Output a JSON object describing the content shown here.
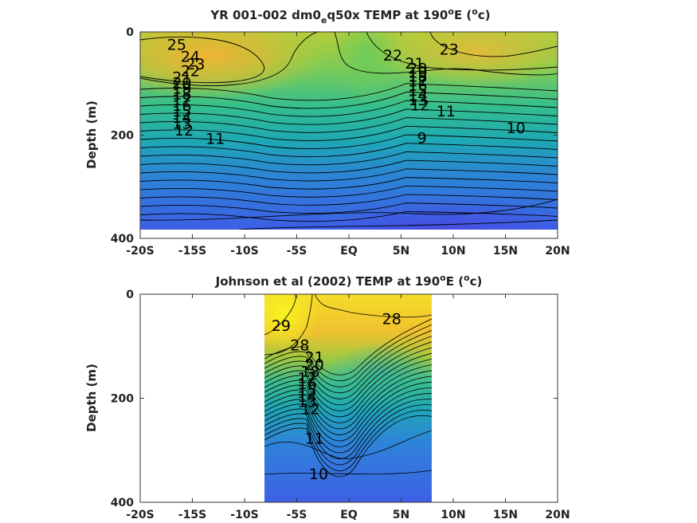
{
  "chart_data": [
    {
      "type": "contour",
      "title_main": "YR 001-002 dm0",
      "title_sub": "e",
      "title_rest": "q50x TEMP at 190",
      "title_sup": "o",
      "title_end": "E (",
      "title_sup2": "o",
      "title_close": "c)",
      "ylabel": "Depth (m)",
      "xlim": [
        -20,
        20
      ],
      "ylim": [
        400,
        0
      ],
      "data_extent_x": [
        -20,
        20
      ],
      "data_extent_y": [
        0,
        385
      ],
      "x_ticks": [
        {
          "v": -20,
          "label": "-20S"
        },
        {
          "v": -15,
          "label": "-15S"
        },
        {
          "v": -10,
          "label": "-10S"
        },
        {
          "v": -5,
          "label": "-5S"
        },
        {
          "v": 0,
          "label": "EQ"
        },
        {
          "v": 5,
          "label": "5N"
        },
        {
          "v": 10,
          "label": "10N"
        },
        {
          "v": 15,
          "label": "15N"
        },
        {
          "v": 20,
          "label": "20N"
        }
      ],
      "y_ticks": [
        {
          "v": 0,
          "label": "0"
        },
        {
          "v": 200,
          "label": "200"
        },
        {
          "v": 400,
          "label": "400"
        }
      ],
      "contour_labels": [
        {
          "x": -16.5,
          "y": 24,
          "text": "25"
        },
        {
          "x": -15.2,
          "y": 47,
          "text": "24"
        },
        {
          "x": -14.7,
          "y": 62,
          "text": "23"
        },
        {
          "x": -15.2,
          "y": 75,
          "text": "22"
        },
        {
          "x": -16.0,
          "y": 87,
          "text": "21"
        },
        {
          "x": -16.0,
          "y": 98,
          "text": "20"
        },
        {
          "x": -16.0,
          "y": 109,
          "text": "19"
        },
        {
          "x": -16.0,
          "y": 120,
          "text": "18"
        },
        {
          "x": -16.0,
          "y": 131,
          "text": "17"
        },
        {
          "x": -16.0,
          "y": 142,
          "text": "16"
        },
        {
          "x": -16.0,
          "y": 153,
          "text": "15"
        },
        {
          "x": -16.0,
          "y": 165,
          "text": "14"
        },
        {
          "x": -16.0,
          "y": 177,
          "text": "13"
        },
        {
          "x": -15.8,
          "y": 190,
          "text": "12"
        },
        {
          "x": -12.8,
          "y": 206,
          "text": "11"
        },
        {
          "x": 4.2,
          "y": 45,
          "text": "22"
        },
        {
          "x": 6.3,
          "y": 60,
          "text": "21"
        },
        {
          "x": 6.6,
          "y": 70,
          "text": "20"
        },
        {
          "x": 6.6,
          "y": 78,
          "text": "19"
        },
        {
          "x": 6.6,
          "y": 86,
          "text": "18"
        },
        {
          "x": 6.6,
          "y": 94,
          "text": "17"
        },
        {
          "x": 6.6,
          "y": 103,
          "text": "16"
        },
        {
          "x": 6.6,
          "y": 113,
          "text": "15"
        },
        {
          "x": 6.6,
          "y": 122,
          "text": "14"
        },
        {
          "x": 6.6,
          "y": 131,
          "text": "13"
        },
        {
          "x": 6.8,
          "y": 141,
          "text": "12"
        },
        {
          "x": 9.3,
          "y": 153,
          "text": "11"
        },
        {
          "x": 16.0,
          "y": 185,
          "text": "10"
        },
        {
          "x": 7.0,
          "y": 205,
          "text": "9"
        },
        {
          "x": 9.6,
          "y": 33,
          "text": "23"
        }
      ]
    },
    {
      "type": "contour",
      "title_main": "Johnson et al (2002) TEMP at 190",
      "title_sup": "o",
      "title_end": "E (",
      "title_sup2": "o",
      "title_close": "c)",
      "ylabel": "Depth (m)",
      "xlim": [
        -20,
        20
      ],
      "ylim": [
        400,
        0
      ],
      "data_extent_x": [
        -8,
        8
      ],
      "data_extent_y": [
        0,
        400
      ],
      "x_ticks": [
        {
          "v": -20,
          "label": "-20S"
        },
        {
          "v": -15,
          "label": "-15S"
        },
        {
          "v": -10,
          "label": "-10S"
        },
        {
          "v": -5,
          "label": "-5S"
        },
        {
          "v": 0,
          "label": "EQ"
        },
        {
          "v": 5,
          "label": "5N"
        },
        {
          "v": 10,
          "label": "10N"
        },
        {
          "v": 15,
          "label": "15N"
        },
        {
          "v": 20,
          "label": "20N"
        }
      ],
      "y_ticks": [
        {
          "v": 0,
          "label": "0"
        },
        {
          "v": 200,
          "label": "200"
        },
        {
          "v": 400,
          "label": "400"
        }
      ],
      "contour_labels": [
        {
          "x": -6.5,
          "y": 60,
          "text": "29"
        },
        {
          "x": 4.1,
          "y": 47,
          "text": "28"
        },
        {
          "x": -4.7,
          "y": 97,
          "text": "28"
        },
        {
          "x": -3.3,
          "y": 120,
          "text": "21"
        },
        {
          "x": -3.3,
          "y": 135,
          "text": "20"
        },
        {
          "x": -3.7,
          "y": 148,
          "text": "18"
        },
        {
          "x": -4.0,
          "y": 160,
          "text": "17"
        },
        {
          "x": -4.0,
          "y": 172,
          "text": "16"
        },
        {
          "x": -4.0,
          "y": 184,
          "text": "15"
        },
        {
          "x": -4.0,
          "y": 196,
          "text": "14"
        },
        {
          "x": -4.0,
          "y": 206,
          "text": "13"
        },
        {
          "x": -3.7,
          "y": 220,
          "text": "12"
        },
        {
          "x": -3.3,
          "y": 277,
          "text": "11"
        },
        {
          "x": -2.9,
          "y": 345,
          "text": "10"
        }
      ]
    }
  ]
}
